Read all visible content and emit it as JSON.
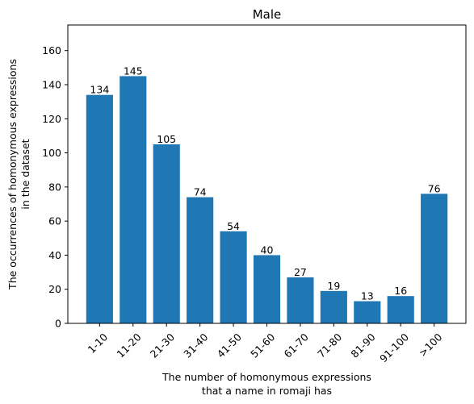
{
  "chart_data": {
    "type": "bar",
    "title": "Male",
    "xlabel_lines": [
      "The number of homonymous expressions",
      "that a name in romaji has"
    ],
    "ylabel_lines": [
      "The occurrences of homonymous expressions",
      "in the dataset"
    ],
    "categories": [
      "1-10",
      "11-20",
      "21-30",
      "31-40",
      "41-50",
      "51-60",
      "61-70",
      "71-80",
      "81-90",
      "91-100",
      ">100"
    ],
    "values": [
      134,
      145,
      105,
      74,
      54,
      40,
      27,
      19,
      13,
      16,
      76
    ],
    "ylim": [
      0,
      175
    ],
    "yticks": [
      0,
      20,
      40,
      60,
      80,
      100,
      120,
      140,
      160
    ],
    "bar_color": "#1f77b4",
    "grid": false,
    "legend": "none"
  }
}
